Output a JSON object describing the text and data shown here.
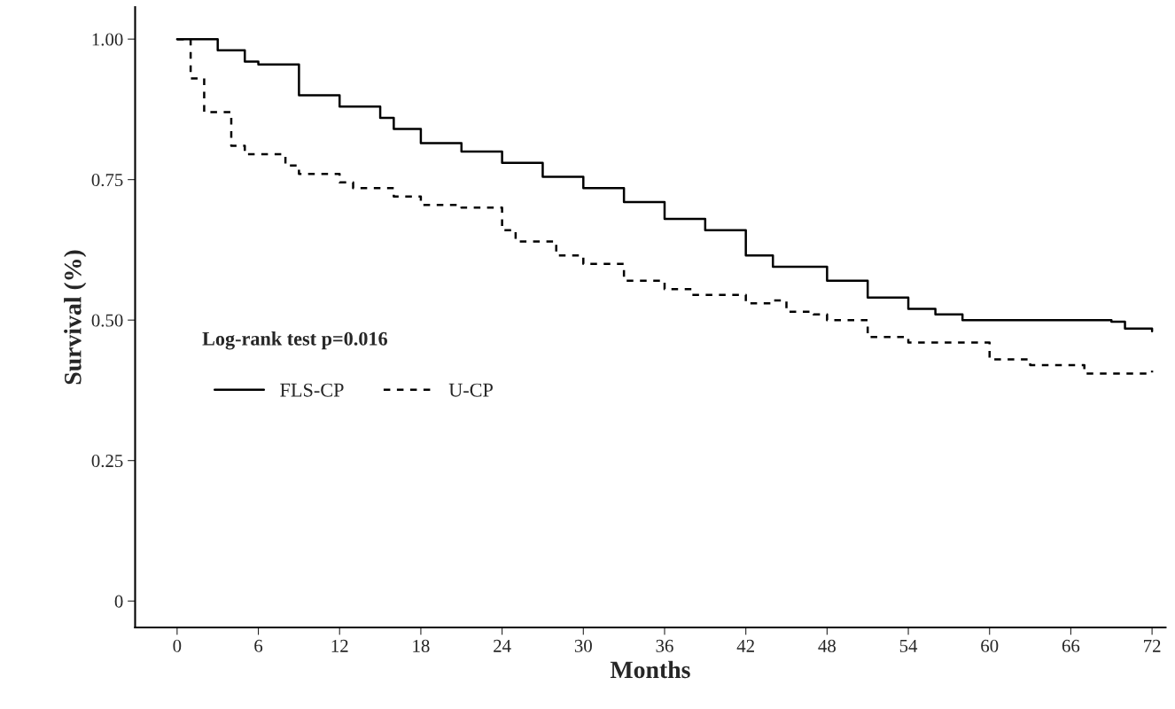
{
  "chart_data": {
    "type": "step",
    "xlabel": "Months",
    "ylabel": "Survival (%)",
    "xlim": [
      -3.1,
      73
    ],
    "xticks": [
      0,
      6,
      12,
      18,
      24,
      30,
      36,
      42,
      48,
      54,
      60,
      66,
      72
    ],
    "ylim": [
      -0.047,
      1.057
    ],
    "yticks": [
      {
        "value": 0,
        "label": "0"
      },
      {
        "value": 0.25,
        "label": "0.25"
      },
      {
        "value": 0.5,
        "label": "0.50"
      },
      {
        "value": 0.75,
        "label": "0.75"
      },
      {
        "value": 1,
        "label": "1.00"
      }
    ],
    "grid": false,
    "legend": "center left",
    "annotations": [
      "Log-rank test p=0.016"
    ],
    "series": [
      {
        "name": "FLS-CP",
        "color": "#000000",
        "line_style": "solid",
        "x": [
          0,
          2,
          3,
          5,
          6,
          9,
          12,
          15,
          16,
          18,
          21,
          24,
          27,
          30,
          33,
          36,
          39,
          42,
          44,
          48,
          51,
          54,
          56,
          58,
          63,
          69,
          70,
          72
        ],
        "values": [
          1.0,
          1.0,
          0.98,
          0.96,
          0.955,
          0.9,
          0.88,
          0.86,
          0.84,
          0.815,
          0.8,
          0.78,
          0.755,
          0.735,
          0.71,
          0.68,
          0.66,
          0.615,
          0.595,
          0.57,
          0.54,
          0.52,
          0.51,
          0.5,
          0.5,
          0.497,
          0.485,
          0.48
        ]
      },
      {
        "name": "U-CP",
        "color": "#000000",
        "line_style": "dashed",
        "x": [
          0,
          1,
          2,
          4,
          5,
          8,
          9,
          12,
          13,
          16,
          18,
          21,
          24,
          25,
          28,
          30,
          33,
          36,
          38,
          42,
          44,
          45,
          47,
          48,
          51,
          54,
          57,
          60,
          63,
          67,
          72
        ],
        "values": [
          1.0,
          0.93,
          0.87,
          0.81,
          0.795,
          0.775,
          0.76,
          0.745,
          0.735,
          0.72,
          0.705,
          0.7,
          0.66,
          0.64,
          0.615,
          0.6,
          0.57,
          0.555,
          0.545,
          0.53,
          0.535,
          0.515,
          0.51,
          0.5,
          0.47,
          0.46,
          0.46,
          0.43,
          0.42,
          0.405,
          0.41
        ]
      }
    ]
  }
}
